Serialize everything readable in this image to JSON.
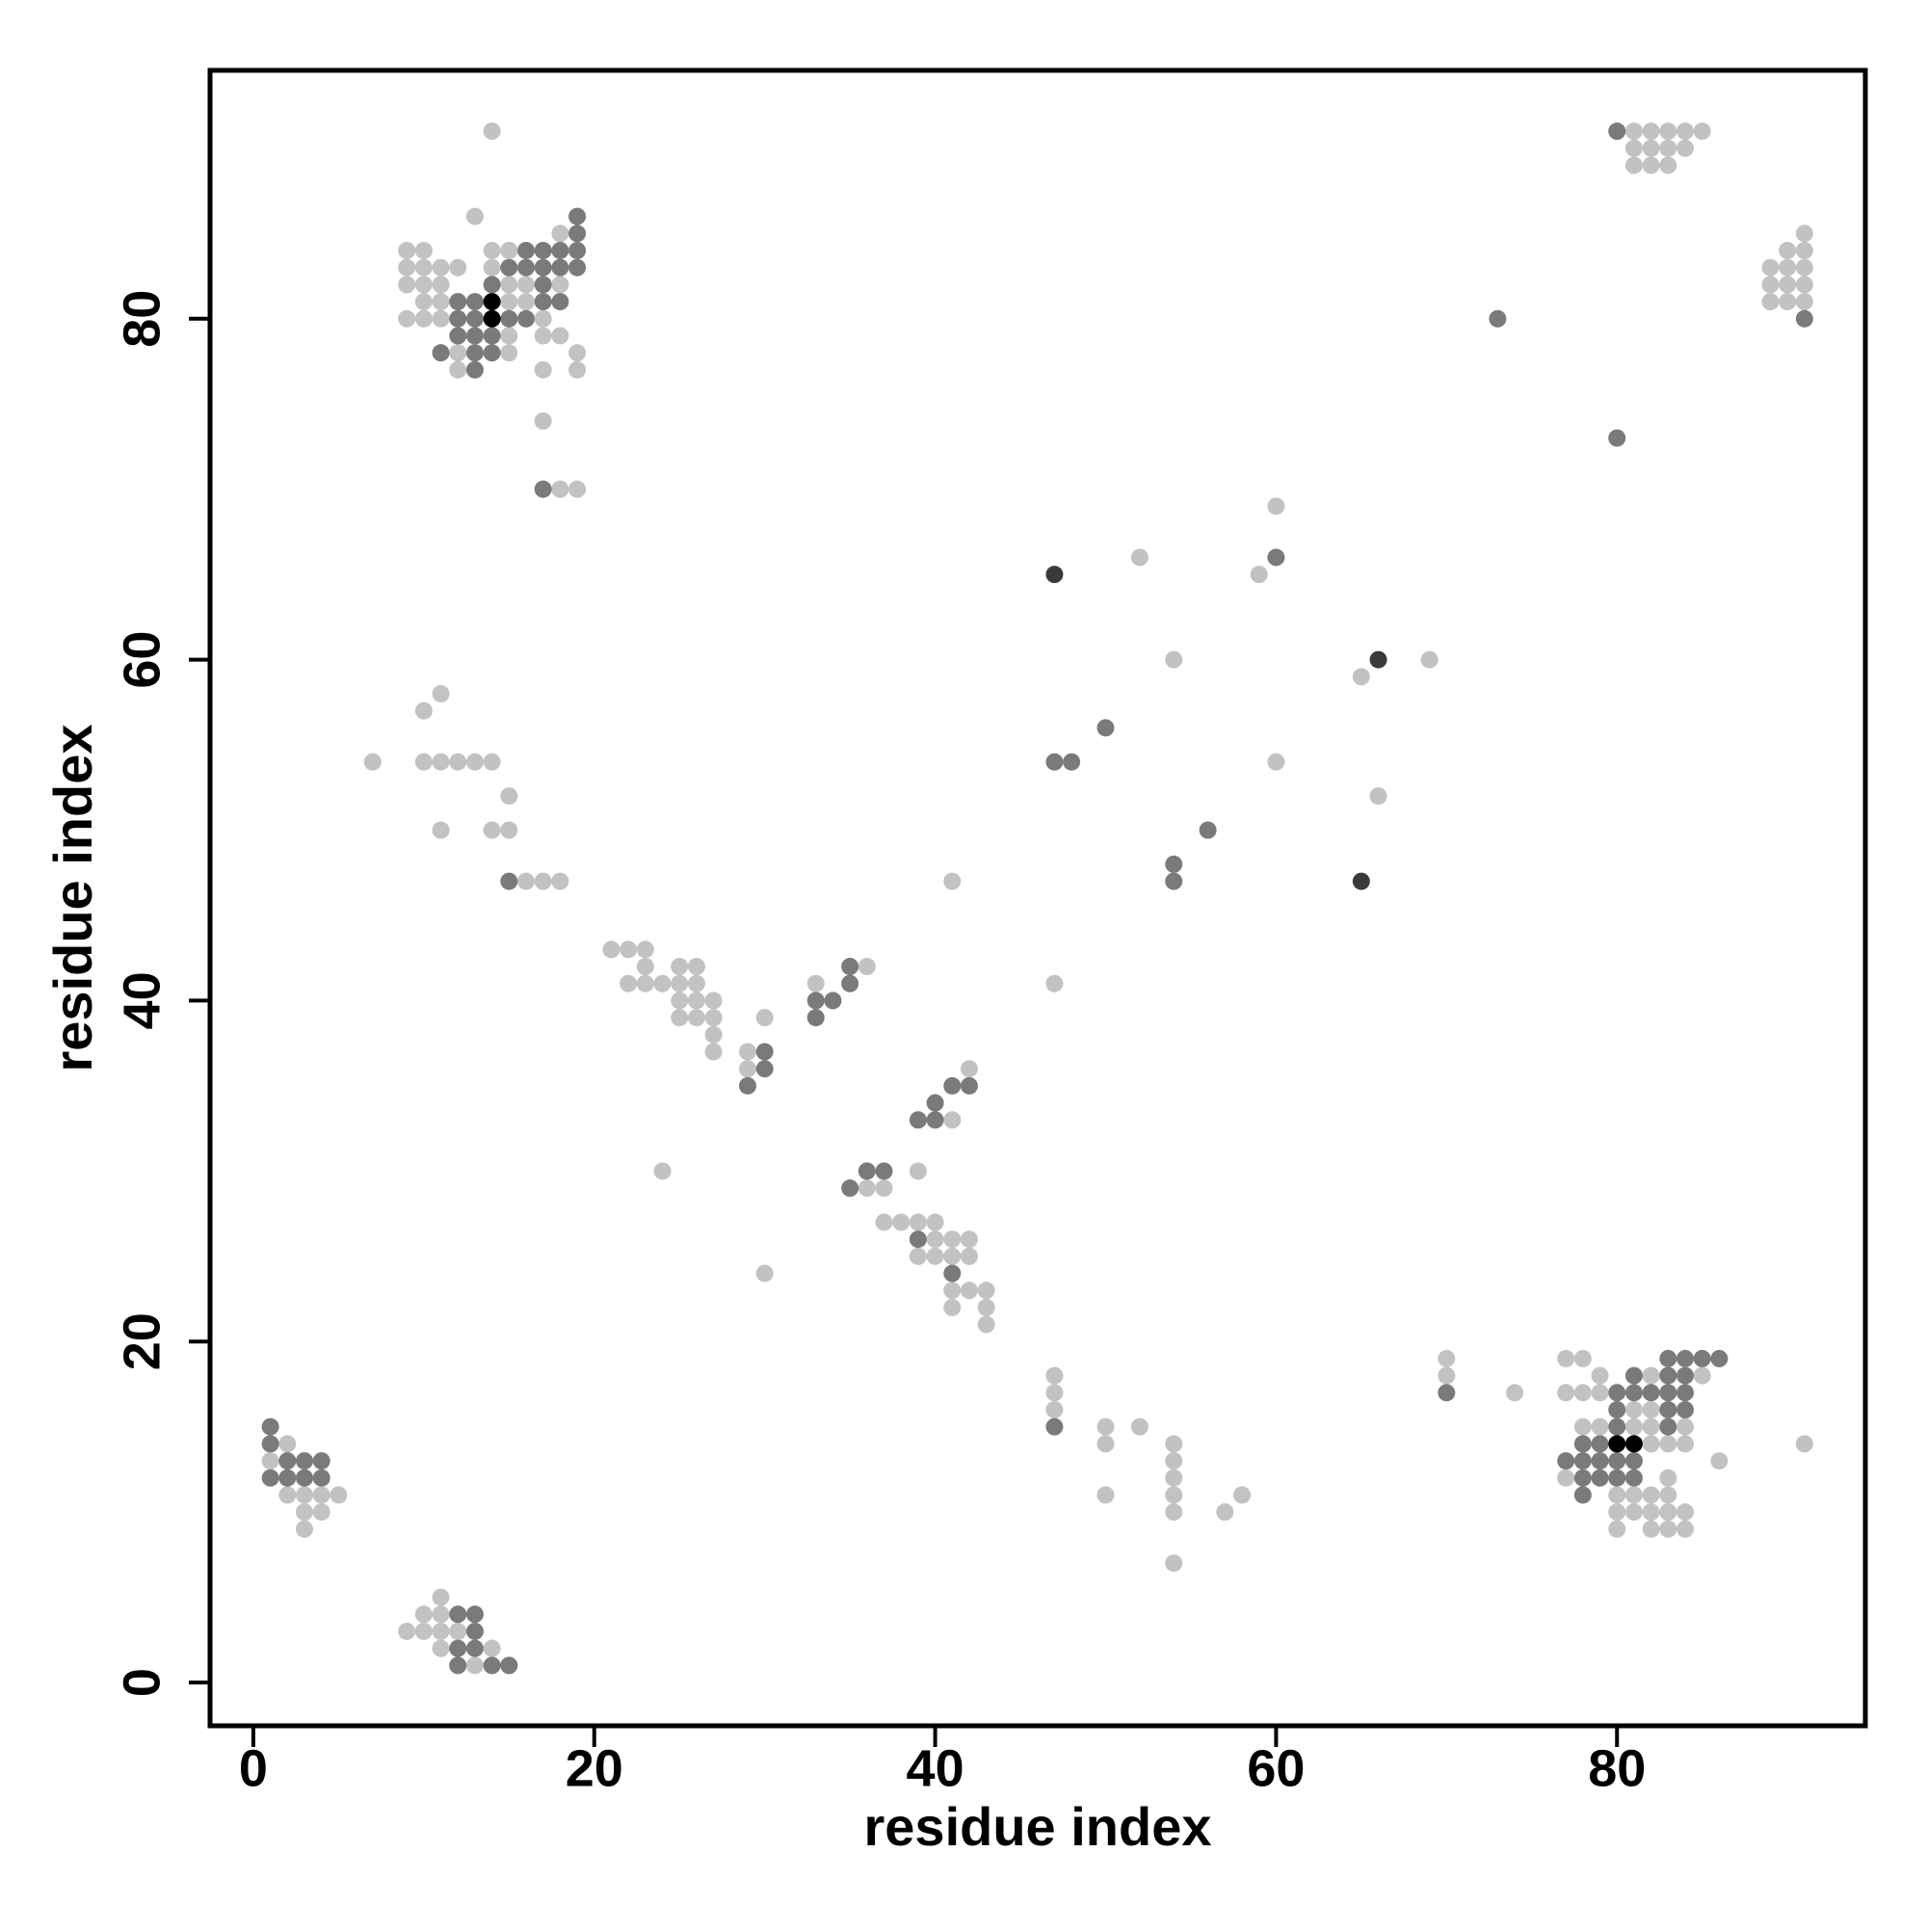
{
  "chart_data": {
    "type": "scatter",
    "x_label": "residue index",
    "y_label": "residue index",
    "xlim": [
      -2.54,
      94.57
    ],
    "ylim": [
      -2.54,
      94.57
    ],
    "xticks": [
      0,
      20,
      40,
      60,
      80
    ],
    "yticks": [
      0,
      20,
      40,
      60,
      80
    ],
    "series": [
      {
        "color": "#c2c2c2",
        "x": [
          2,
          1,
          2,
          3,
          4,
          5,
          3,
          4,
          3,
          3,
          9,
          10,
          10,
          11,
          11,
          11,
          11,
          12,
          13,
          14,
          21,
          22,
          23,
          22,
          23,
          24,
          23,
          25,
          26,
          25,
          26,
          25,
          26,
          27,
          25,
          26,
          27,
          27,
          27,
          29,
          29,
          30,
          33,
          36,
          42,
          41,
          39,
          36,
          37,
          24,
          30,
          37,
          38,
          39,
          40,
          40,
          41,
          42,
          39,
          40,
          41,
          42,
          41,
          42,
          43,
          41,
          43,
          43,
          7,
          10,
          11,
          12,
          13,
          14,
          10,
          11,
          11,
          14,
          15,
          15,
          16,
          17,
          18,
          14,
          13,
          18,
          9,
          10,
          14,
          15,
          9,
          10,
          11,
          12,
          14,
          9,
          10,
          11,
          15,
          16,
          18,
          10,
          11,
          15,
          16,
          9,
          10,
          11,
          17,
          15,
          17,
          18,
          12,
          15,
          19,
          12,
          17,
          19,
          17,
          18,
          19,
          81,
          82,
          83,
          84,
          85,
          81,
          82,
          83,
          84,
          81,
          82,
          83,
          91,
          90,
          91,
          89,
          90,
          91,
          89,
          90,
          91,
          89,
          90,
          91,
          52,
          60,
          59,
          54,
          65,
          69,
          60,
          66,
          41,
          47,
          47,
          47,
          47,
          50,
          50,
          52,
          54,
          54,
          54,
          54,
          54,
          50,
          57,
          58,
          54,
          70,
          70,
          74,
          77,
          78,
          79,
          82,
          85,
          77,
          78,
          79,
          81,
          82,
          78,
          79,
          81,
          82,
          84,
          82,
          83,
          84,
          91,
          86,
          77,
          83,
          80,
          81,
          82,
          83,
          80,
          81,
          82,
          83,
          84,
          80,
          82,
          83,
          84
        ],
        "y": [
          14,
          13,
          11,
          11,
          11,
          11,
          10,
          10,
          9,
          12,
          3,
          4,
          3,
          5,
          4,
          3,
          2,
          3,
          1,
          2,
          43,
          43,
          43,
          41,
          41,
          41,
          42,
          42,
          42,
          41,
          41,
          40,
          40,
          40,
          39,
          39,
          39,
          38,
          37,
          37,
          36,
          39,
          41,
          42,
          36,
          33,
          30,
          29,
          29,
          30,
          24,
          27,
          27,
          27,
          27,
          25,
          25,
          25,
          25,
          26,
          26,
          26,
          23,
          23,
          23,
          22,
          22,
          21,
          54,
          54,
          54,
          54,
          54,
          54,
          57,
          58,
          50,
          50,
          50,
          52,
          47,
          47,
          47,
          91,
          86,
          85,
          84,
          84,
          84,
          84,
          83,
          83,
          83,
          83,
          83,
          82,
          82,
          82,
          82,
          82,
          82,
          81,
          81,
          81,
          81,
          80,
          80,
          80,
          80,
          79,
          79,
          79,
          78,
          78,
          78,
          77,
          77,
          77,
          74,
          70,
          70,
          91,
          91,
          91,
          91,
          91,
          90,
          90,
          90,
          90,
          89,
          89,
          89,
          85,
          84,
          84,
          83,
          83,
          83,
          82,
          82,
          82,
          81,
          81,
          81,
          66,
          69,
          65,
          60,
          59,
          60,
          54,
          52,
          47,
          41,
          18,
          17,
          16,
          15,
          14,
          15,
          14,
          13,
          12,
          11,
          10,
          11,
          10,
          11,
          7,
          19,
          18,
          17,
          19,
          19,
          18,
          18,
          18,
          17,
          17,
          17,
          16,
          16,
          15,
          15,
          15,
          15,
          15,
          14,
          14,
          14,
          14,
          13,
          12,
          12,
          11,
          11,
          11,
          11,
          10,
          10,
          10,
          10,
          10,
          9,
          9,
          9,
          9
        ]
      },
      {
        "color": "#7a7a7a",
        "x": [
          1,
          1,
          2,
          3,
          4,
          1,
          2,
          3,
          4,
          12,
          13,
          12,
          13,
          13,
          12,
          14,
          15,
          30,
          30,
          29,
          33,
          34,
          33,
          35,
          35,
          42,
          41,
          40,
          39,
          40,
          36,
          37,
          35,
          39,
          41,
          15,
          19,
          19,
          16,
          17,
          18,
          19,
          15,
          16,
          17,
          18,
          19,
          14,
          17,
          12,
          13,
          17,
          18,
          12,
          13,
          15,
          16,
          12,
          13,
          14,
          11,
          13,
          14,
          13,
          17,
          80,
          91,
          73,
          80,
          60,
          50,
          47,
          48,
          56,
          54,
          54,
          47,
          70,
          83,
          84,
          85,
          86,
          81,
          83,
          84,
          80,
          81,
          82,
          83,
          84,
          80,
          83,
          84,
          80,
          83,
          78,
          79,
          77,
          78,
          79,
          80,
          81,
          78,
          79,
          80,
          81,
          78
        ],
        "y": [
          15,
          14,
          13,
          13,
          13,
          12,
          12,
          12,
          12,
          4,
          4,
          2,
          2,
          3,
          1,
          1,
          1,
          37,
          36,
          35,
          40,
          40,
          39,
          42,
          41,
          35,
          35,
          34,
          33,
          33,
          30,
          30,
          29,
          26,
          24,
          47,
          86,
          85,
          84,
          84,
          84,
          84,
          83,
          83,
          83,
          83,
          83,
          82,
          82,
          81,
          81,
          81,
          81,
          80,
          80,
          80,
          80,
          79,
          79,
          79,
          78,
          78,
          78,
          77,
          70,
          91,
          80,
          80,
          73,
          66,
          56,
          54,
          54,
          50,
          48,
          47,
          15,
          17,
          19,
          19,
          19,
          19,
          18,
          18,
          18,
          17,
          17,
          17,
          17,
          17,
          16,
          16,
          16,
          15,
          15,
          14,
          14,
          13,
          13,
          13,
          13,
          13,
          12,
          12,
          12,
          12,
          11
        ]
      },
      {
        "color": "#3a3a3a",
        "x": [
          47,
          66,
          65
        ],
        "y": [
          65,
          60,
          47
        ]
      },
      {
        "color": "#000000",
        "x": [
          14,
          14,
          80,
          81
        ],
        "y": [
          81,
          80,
          14,
          14
        ]
      }
    ]
  }
}
